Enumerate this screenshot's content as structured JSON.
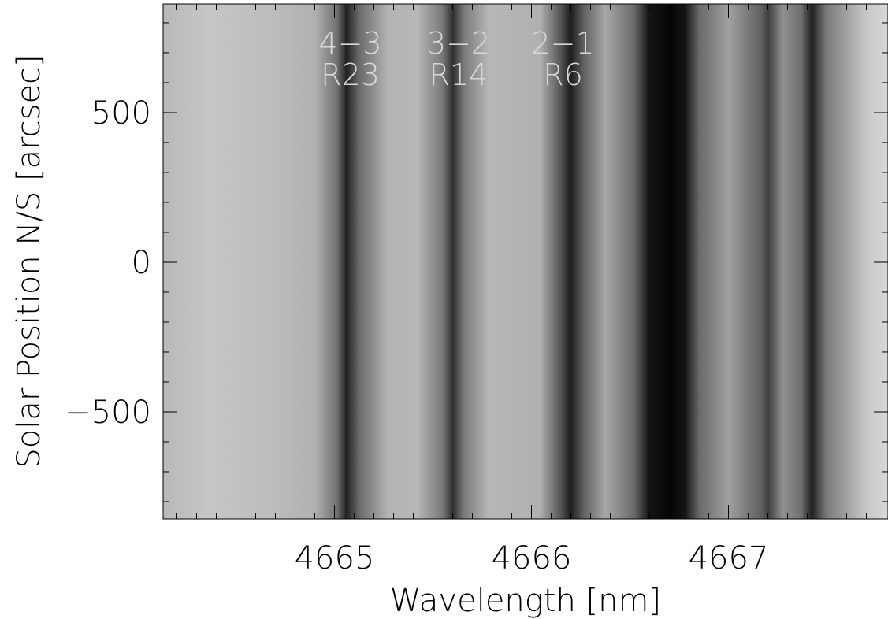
{
  "chart_data": {
    "type": "image",
    "xlabel": "Wavelength [nm]",
    "ylabel": "Solar Position N/S [arcsec]",
    "xlim": [
      4664.13,
      4667.81
    ],
    "ylim": [
      -858,
      863
    ],
    "xticks": [
      4665,
      4666,
      4667
    ],
    "yticks": [
      {
        "value": -500,
        "label": "−500"
      },
      0,
      500
    ],
    "xminor_step": 0.1,
    "yminor_step": 100,
    "annotations": [
      {
        "x": 4665.08,
        "lines": [
          "4−3",
          "R23"
        ]
      },
      {
        "x": 4665.63,
        "lines": [
          "3−2",
          "R14"
        ]
      },
      {
        "x": 4666.16,
        "lines": [
          "2−1",
          "R6"
        ]
      }
    ]
  }
}
